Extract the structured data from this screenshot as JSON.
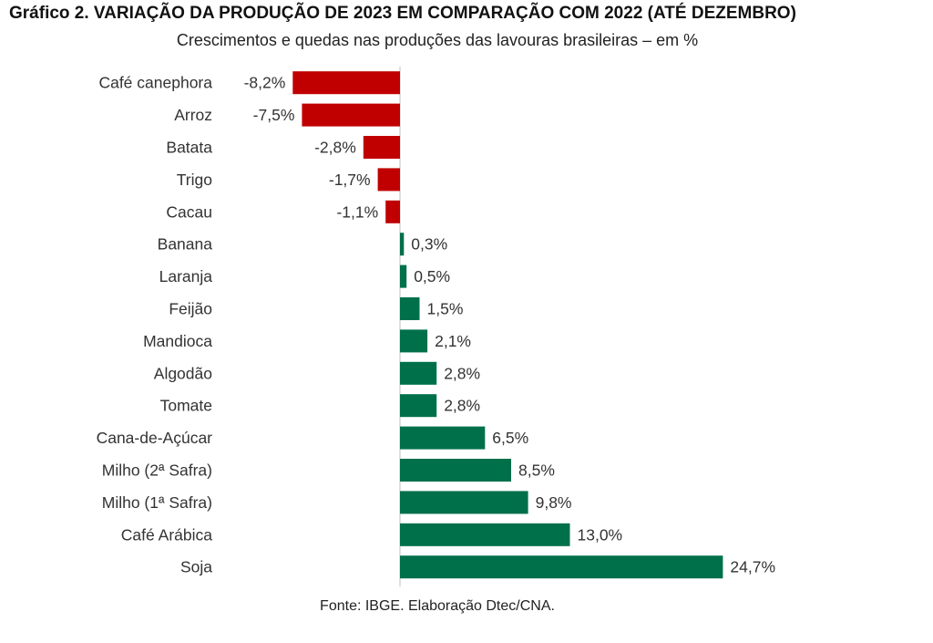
{
  "header": {
    "title": "Gráfico 2. VARIAÇÃO DA PRODUÇÃO DE 2023 EM COMPARAÇÃO COM 2022 (ATÉ DEZEMBRO)",
    "subtitle": "Crescimentos e quedas nas produções das lavouras brasileiras – em %"
  },
  "footer": {
    "source": "Fonte: IBGE. Elaboração Dtec/CNA."
  },
  "chart_data": {
    "type": "bar",
    "orientation": "horizontal",
    "title": "Gráfico 2. VARIAÇÃO DA PRODUÇÃO DE 2023 EM COMPARAÇÃO COM 2022 (ATÉ DEZEMBRO)",
    "subtitle": "Crescimentos e quedas nas produções das lavouras brasileiras – em %",
    "categories": [
      "Café canephora",
      "Arroz",
      "Batata",
      "Trigo",
      "Cacau",
      "Banana",
      "Laranja",
      "Feijão",
      "Mandioca",
      "Algodão",
      "Tomate",
      "Cana-de-Açúcar",
      "Milho (2ª Safra)",
      "Milho (1ª Safra)",
      "Café Arábica",
      "Soja"
    ],
    "values": [
      -8.2,
      -7.5,
      -2.8,
      -1.7,
      -1.1,
      0.3,
      0.5,
      1.5,
      2.1,
      2.8,
      2.8,
      6.5,
      8.5,
      9.8,
      13.0,
      24.7
    ],
    "data_labels": [
      "-8,2%",
      "-7,5%",
      "-2,8%",
      "-1,7%",
      "-1,1%",
      "0,3%",
      "0,5%",
      "1,5%",
      "2,1%",
      "2,8%",
      "2,8%",
      "6,5%",
      "8,5%",
      "9,8%",
      "13,0%",
      "24,7%"
    ],
    "colors": {
      "negative": "#c00000",
      "positive": "#00704a",
      "axis": "#bfbfbf"
    },
    "grid": false,
    "legend": "none"
  }
}
